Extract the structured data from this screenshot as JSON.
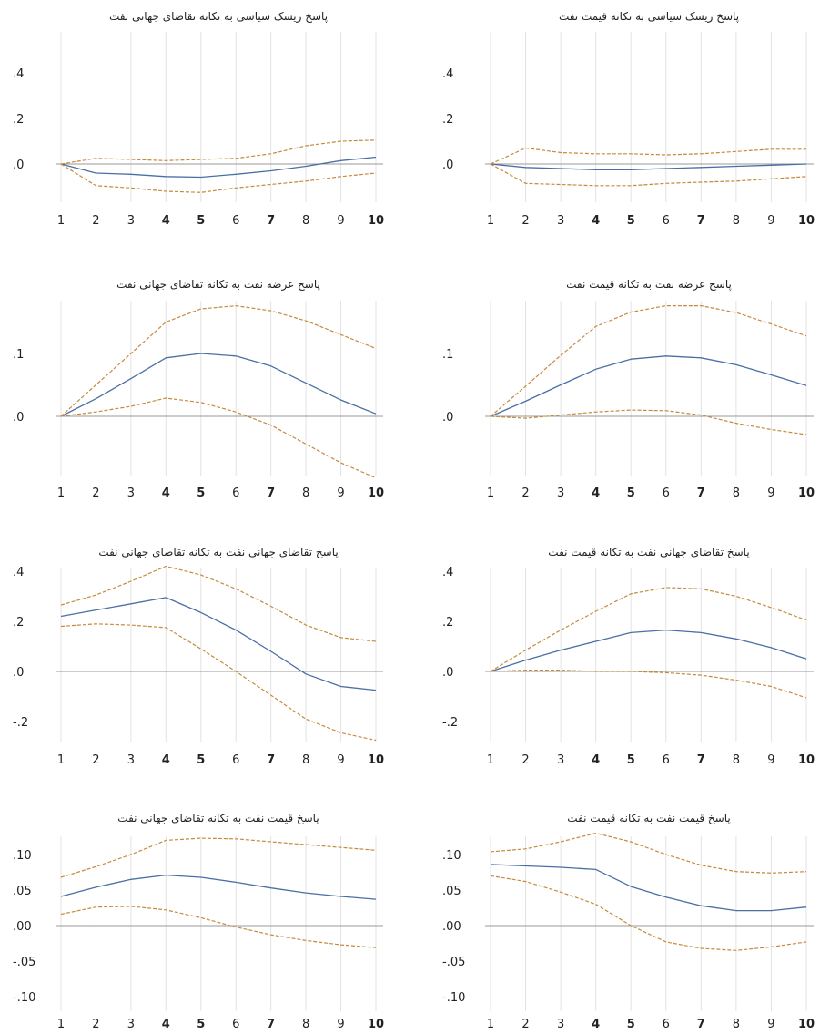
{
  "chart_data": [
    {
      "type": "line",
      "title": "پاسخ ریسک سیاسی به تکانه تقاضای جهانی نفت",
      "x": [
        1,
        2,
        3,
        4,
        5,
        6,
        7,
        8,
        9,
        10
      ],
      "x_tick_labels": [
        "1",
        "2",
        "3",
        "4",
        "5",
        "6",
        "7",
        "8",
        "9",
        "10"
      ],
      "bold_x_ticks": [
        "4",
        "5",
        "7",
        "10"
      ],
      "ylim": [
        -0.12,
        0.5
      ],
      "y_ticks": [
        0,
        0.2,
        0.4
      ],
      "y_tick_labels": [
        ".0",
        ".2",
        ".4"
      ],
      "grid": "vertical",
      "series": [
        {
          "role": "response",
          "color": "#4a6fa5",
          "style": "solid",
          "values": [
            0.0,
            -0.04,
            -0.045,
            -0.055,
            -0.058,
            -0.045,
            -0.03,
            -0.01,
            0.015,
            0.03
          ]
        },
        {
          "role": "upper",
          "color": "#c58a3e",
          "style": "dashed",
          "values": [
            0.0,
            0.025,
            0.02,
            0.015,
            0.02,
            0.025,
            0.045,
            0.08,
            0.1,
            0.105
          ]
        },
        {
          "role": "lower",
          "color": "#c58a3e",
          "style": "dashed",
          "values": [
            0.0,
            -0.095,
            -0.105,
            -0.12,
            -0.125,
            -0.105,
            -0.09,
            -0.075,
            -0.055,
            -0.04
          ]
        }
      ]
    },
    {
      "type": "line",
      "title": "پاسخ ریسک سیاسی به تکانه قیمت نفت",
      "x": [
        1,
        2,
        3,
        4,
        5,
        6,
        7,
        8,
        9,
        10
      ],
      "x_tick_labels": [
        "1",
        "2",
        "3",
        "4",
        "5",
        "6",
        "7",
        "8",
        "9",
        "10"
      ],
      "bold_x_ticks": [
        "4",
        "5",
        "7",
        "10"
      ],
      "ylim": [
        -0.12,
        0.5
      ],
      "y_ticks": [
        0,
        0.2,
        0.4
      ],
      "y_tick_labels": [
        ".0",
        ".2",
        ".4"
      ],
      "grid": "vertical",
      "series": [
        {
          "role": "response",
          "color": "#4a6fa5",
          "style": "solid",
          "values": [
            0.0,
            -0.015,
            -0.02,
            -0.025,
            -0.025,
            -0.02,
            -0.015,
            -0.01,
            -0.005,
            0.0
          ]
        },
        {
          "role": "upper",
          "color": "#c58a3e",
          "style": "dashed",
          "values": [
            0.0,
            0.07,
            0.05,
            0.045,
            0.045,
            0.04,
            0.045,
            0.055,
            0.065,
            0.065
          ]
        },
        {
          "role": "lower",
          "color": "#c58a3e",
          "style": "dashed",
          "values": [
            0.0,
            -0.085,
            -0.09,
            -0.095,
            -0.095,
            -0.085,
            -0.08,
            -0.075,
            -0.065,
            -0.055
          ]
        }
      ]
    },
    {
      "type": "line",
      "title": "پاسخ عرضه نفت به تکانه تقاضای جهانی نفت",
      "x": [
        1,
        2,
        3,
        4,
        5,
        6,
        7,
        8,
        9,
        10
      ],
      "x_tick_labels": [
        "1",
        "2",
        "3",
        "4",
        "5",
        "6",
        "7",
        "8",
        "9",
        "10"
      ],
      "bold_x_ticks": [
        "4",
        "5",
        "7",
        "10"
      ],
      "ylim": [
        -0.098,
        0.176
      ],
      "y_ticks": [
        0,
        0.1
      ],
      "y_tick_labels": [
        ".0",
        ".1"
      ],
      "grid": "vertical",
      "series": [
        {
          "role": "response",
          "color": "#4a6fa5",
          "style": "solid",
          "values": [
            0.0,
            0.028,
            0.06,
            0.093,
            0.1,
            0.096,
            0.08,
            0.053,
            0.026,
            0.004
          ]
        },
        {
          "role": "upper",
          "color": "#c58a3e",
          "style": "dashed",
          "values": [
            0.0,
            0.05,
            0.1,
            0.15,
            0.171,
            0.176,
            0.168,
            0.152,
            0.13,
            0.108
          ]
        },
        {
          "role": "lower",
          "color": "#c58a3e",
          "style": "dashed",
          "values": [
            0.0,
            0.007,
            0.016,
            0.029,
            0.022,
            0.007,
            -0.014,
            -0.044,
            -0.074,
            -0.098
          ]
        }
      ]
    },
    {
      "type": "line",
      "title": "پاسخ عرضه نفت به تکانه قیمت نفت",
      "x": [
        1,
        2,
        3,
        4,
        5,
        6,
        7,
        8,
        9,
        10
      ],
      "x_tick_labels": [
        "1",
        "2",
        "3",
        "4",
        "5",
        "6",
        "7",
        "8",
        "9",
        "10"
      ],
      "bold_x_ticks": [
        "4",
        "5",
        "7",
        "10"
      ],
      "ylim": [
        -0.098,
        0.176
      ],
      "y_ticks": [
        0,
        0.1
      ],
      "y_tick_labels": [
        ".0",
        ".1"
      ],
      "grid": "vertical",
      "series": [
        {
          "role": "response",
          "color": "#4a6fa5",
          "style": "solid",
          "values": [
            0.0,
            0.024,
            0.05,
            0.075,
            0.091,
            0.096,
            0.093,
            0.082,
            0.066,
            0.049
          ]
        },
        {
          "role": "upper",
          "color": "#c58a3e",
          "style": "dashed",
          "values": [
            0.0,
            0.048,
            0.097,
            0.143,
            0.166,
            0.176,
            0.176,
            0.165,
            0.147,
            0.128
          ]
        },
        {
          "role": "lower",
          "color": "#c58a3e",
          "style": "dashed",
          "values": [
            0.0,
            -0.003,
            0.002,
            0.007,
            0.01,
            0.009,
            0.002,
            -0.011,
            -0.021,
            -0.029
          ]
        }
      ]
    },
    {
      "type": "line",
      "title": "پاسخ تقاضای جهانی نفت به تکانه تقاضای جهانی نفت",
      "x": [
        1,
        2,
        3,
        4,
        5,
        6,
        7,
        8,
        9,
        10
      ],
      "x_tick_labels": [
        "1",
        "2",
        "3",
        "4",
        "5",
        "6",
        "7",
        "8",
        "9",
        "10"
      ],
      "bold_x_ticks": [
        "4",
        "5",
        "7",
        "10"
      ],
      "ylim": [
        -0.28,
        0.42
      ],
      "y_ticks": [
        -0.2,
        0,
        0.2,
        0.4
      ],
      "y_tick_labels": [
        "-.2",
        ".0",
        ".2",
        ".4"
      ],
      "grid": "vertical",
      "series": [
        {
          "role": "response",
          "color": "#4a6fa5",
          "style": "solid",
          "values": [
            0.22,
            0.245,
            0.27,
            0.295,
            0.235,
            0.165,
            0.08,
            -0.01,
            -0.06,
            -0.075
          ]
        },
        {
          "role": "upper",
          "color": "#c58a3e",
          "style": "dashed",
          "values": [
            0.265,
            0.305,
            0.36,
            0.42,
            0.385,
            0.33,
            0.26,
            0.185,
            0.135,
            0.12
          ]
        },
        {
          "role": "lower",
          "color": "#c58a3e",
          "style": "dashed",
          "values": [
            0.18,
            0.19,
            0.185,
            0.175,
            0.09,
            0.0,
            -0.095,
            -0.19,
            -0.245,
            -0.275
          ]
        }
      ]
    },
    {
      "type": "line",
      "title": "پاسخ تقاضای جهانی نفت به تکانه قیمت نفت",
      "x": [
        1,
        2,
        3,
        4,
        5,
        6,
        7,
        8,
        9,
        10
      ],
      "x_tick_labels": [
        "1",
        "2",
        "3",
        "4",
        "5",
        "6",
        "7",
        "8",
        "9",
        "10"
      ],
      "bold_x_ticks": [
        "4",
        "5",
        "7",
        "10"
      ],
      "ylim": [
        -0.28,
        0.42
      ],
      "y_ticks": [
        -0.2,
        0,
        0.2,
        0.4
      ],
      "y_tick_labels": [
        "-.2",
        ".0",
        ".2",
        ".4"
      ],
      "grid": "vertical",
      "series": [
        {
          "role": "response",
          "color": "#4a6fa5",
          "style": "solid",
          "values": [
            0.0,
            0.045,
            0.085,
            0.12,
            0.155,
            0.165,
            0.155,
            0.13,
            0.095,
            0.05
          ]
        },
        {
          "role": "upper",
          "color": "#c58a3e",
          "style": "dashed",
          "values": [
            0.0,
            0.085,
            0.165,
            0.24,
            0.31,
            0.335,
            0.33,
            0.3,
            0.255,
            0.205
          ]
        },
        {
          "role": "lower",
          "color": "#c58a3e",
          "style": "dashed",
          "values": [
            0.0,
            0.005,
            0.005,
            0.0,
            0.0,
            -0.005,
            -0.015,
            -0.035,
            -0.06,
            -0.105
          ]
        }
      ]
    },
    {
      "type": "line",
      "title": "پاسخ قیمت نفت به تکانه تقاضای جهانی نفت",
      "x": [
        1,
        2,
        3,
        4,
        5,
        6,
        7,
        8,
        9,
        10
      ],
      "x_tick_labels": [
        "1",
        "2",
        "3",
        "4",
        "5",
        "6",
        "7",
        "8",
        "9",
        "10"
      ],
      "bold_x_ticks": [
        "4",
        "5",
        "7",
        "10"
      ],
      "ylim": [
        -0.11,
        0.135
      ],
      "y_ticks": [
        -0.1,
        -0.05,
        0.0,
        0.05,
        0.1
      ],
      "y_tick_labels": [
        "-.10",
        "-.05",
        ".00",
        ".05",
        ".10"
      ],
      "grid": "vertical",
      "series": [
        {
          "role": "response",
          "color": "#4a6fa5",
          "style": "solid",
          "values": [
            0.041,
            0.054,
            0.065,
            0.071,
            0.068,
            0.061,
            0.053,
            0.046,
            0.041,
            0.037
          ]
        },
        {
          "role": "upper",
          "color": "#c58a3e",
          "style": "dashed",
          "values": [
            0.068,
            0.083,
            0.1,
            0.12,
            0.123,
            0.122,
            0.118,
            0.114,
            0.11,
            0.106
          ]
        },
        {
          "role": "lower",
          "color": "#c58a3e",
          "style": "dashed",
          "values": [
            0.016,
            0.026,
            0.027,
            0.022,
            0.011,
            -0.002,
            -0.013,
            -0.021,
            -0.027,
            -0.031
          ]
        }
      ]
    },
    {
      "type": "line",
      "title": "پاسخ قیمت نفت به تکانه قیمت نفت",
      "x": [
        1,
        2,
        3,
        4,
        5,
        6,
        7,
        8,
        9,
        10
      ],
      "x_tick_labels": [
        "1",
        "2",
        "3",
        "4",
        "5",
        "6",
        "7",
        "8",
        "9",
        "10"
      ],
      "bold_x_ticks": [
        "4",
        "5",
        "7",
        "10"
      ],
      "ylim": [
        -0.11,
        0.135
      ],
      "y_ticks": [
        -0.1,
        -0.05,
        0.0,
        0.05,
        0.1
      ],
      "y_tick_labels": [
        "-.10",
        "-.05",
        ".00",
        ".05",
        ".10"
      ],
      "grid": "vertical",
      "series": [
        {
          "role": "response",
          "color": "#4a6fa5",
          "style": "solid",
          "values": [
            0.086,
            0.084,
            0.082,
            0.079,
            0.055,
            0.04,
            0.028,
            0.021,
            0.021,
            0.026
          ]
        },
        {
          "role": "upper",
          "color": "#c58a3e",
          "style": "dashed",
          "values": [
            0.104,
            0.108,
            0.118,
            0.13,
            0.118,
            0.1,
            0.085,
            0.076,
            0.074,
            0.076
          ]
        },
        {
          "role": "lower",
          "color": "#c58a3e",
          "style": "dashed",
          "values": [
            0.07,
            0.062,
            0.047,
            0.03,
            0.0,
            -0.023,
            -0.032,
            -0.035,
            -0.03,
            -0.023
          ]
        }
      ]
    }
  ]
}
